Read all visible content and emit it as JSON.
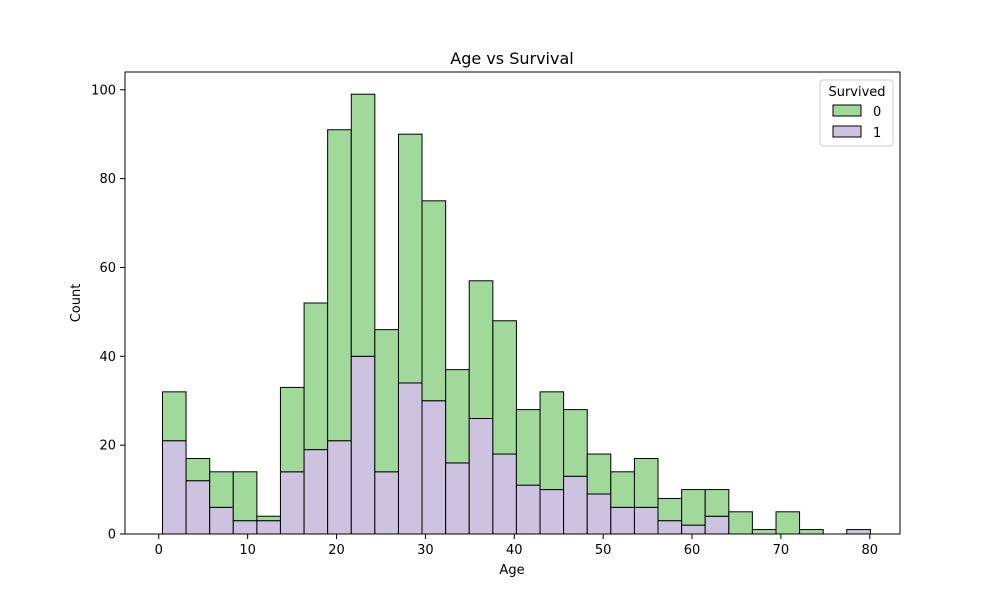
{
  "chart_data": {
    "type": "bar",
    "stacked": true,
    "title": "Age vs Survival",
    "xlabel": "Age",
    "ylabel": "Count",
    "xlim": [
      -3.8,
      83.4
    ],
    "ylim": [
      0,
      104
    ],
    "xticks": [
      0,
      10,
      20,
      30,
      40,
      50,
      60,
      70,
      80
    ],
    "yticks": [
      0,
      20,
      40,
      60,
      80,
      100
    ],
    "bin_edges": [
      0.42,
      3.07,
      5.73,
      8.38,
      11.04,
      13.69,
      16.35,
      19.0,
      21.66,
      24.31,
      26.97,
      29.62,
      32.28,
      34.93,
      37.59,
      40.24,
      42.9,
      45.55,
      48.21,
      50.86,
      53.52,
      56.17,
      58.83,
      61.48,
      64.14,
      66.79,
      69.45,
      72.1,
      74.76,
      77.41,
      80.07
    ],
    "legend": {
      "title": "Survived",
      "position": "top-right"
    },
    "grid": false,
    "series": [
      {
        "name": "0",
        "color": "#a1d99b",
        "values": [
          11,
          5,
          8,
          11,
          1,
          19,
          33,
          70,
          59,
          32,
          56,
          45,
          21,
          31,
          30,
          17,
          22,
          15,
          9,
          8,
          11,
          5,
          8,
          6,
          5,
          1,
          5,
          1,
          0,
          0
        ]
      },
      {
        "name": "1",
        "color": "#cdc3e0",
        "values": [
          21,
          12,
          6,
          3,
          3,
          14,
          19,
          21,
          40,
          14,
          34,
          30,
          16,
          26,
          18,
          11,
          10,
          13,
          9,
          6,
          6,
          3,
          2,
          4,
          0,
          0,
          0,
          0,
          0,
          1
        ]
      }
    ]
  }
}
